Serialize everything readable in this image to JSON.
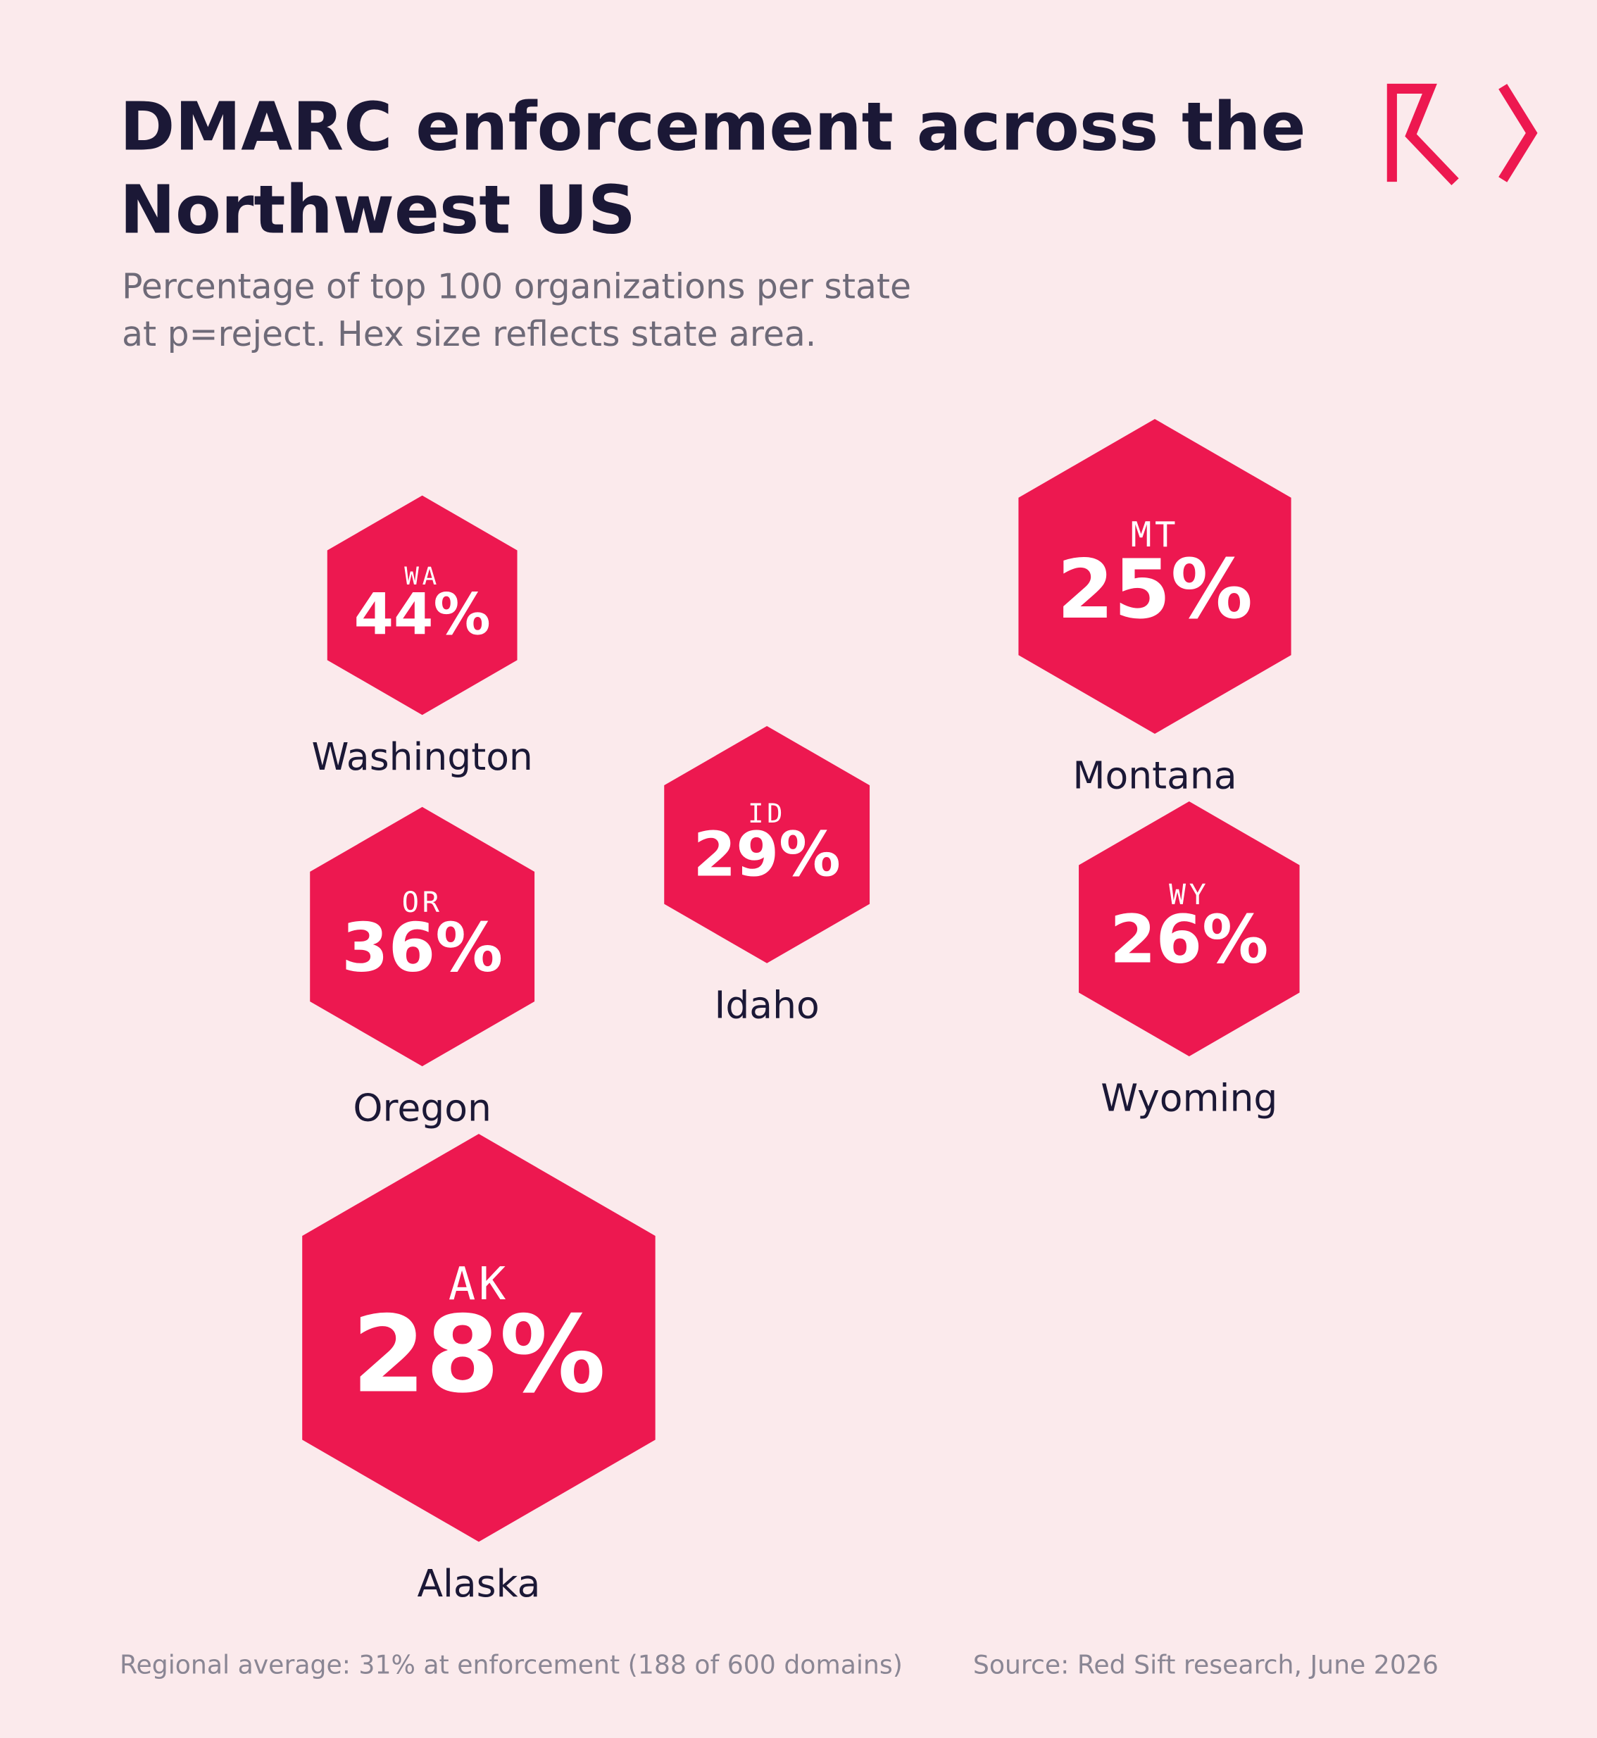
{
  "chart_data": {
    "type": "hexmap",
    "title": [
      "DMARC enforcement across the",
      "Northwest US"
    ],
    "subtitle": [
      "Percentage of top 100 organizations per state",
      "at p=reject. Hex size reflects state area."
    ],
    "categories": [
      "Washington",
      "Montana",
      "Idaho",
      "Oregon",
      "Wyoming",
      "Alaska"
    ],
    "codes": [
      "WA",
      "MT",
      "ID",
      "OR",
      "WY",
      "AK"
    ],
    "values": [
      44,
      25,
      29,
      36,
      26,
      28
    ],
    "value_labels": [
      "44%",
      "25%",
      "29%",
      "36%",
      "26%",
      "28%"
    ],
    "color": "#ed1850",
    "footnotes": [
      "Regional average: 31% at enforcement (188 of 600 domains)",
      "Source: Red Sift research, June 2026"
    ]
  }
}
